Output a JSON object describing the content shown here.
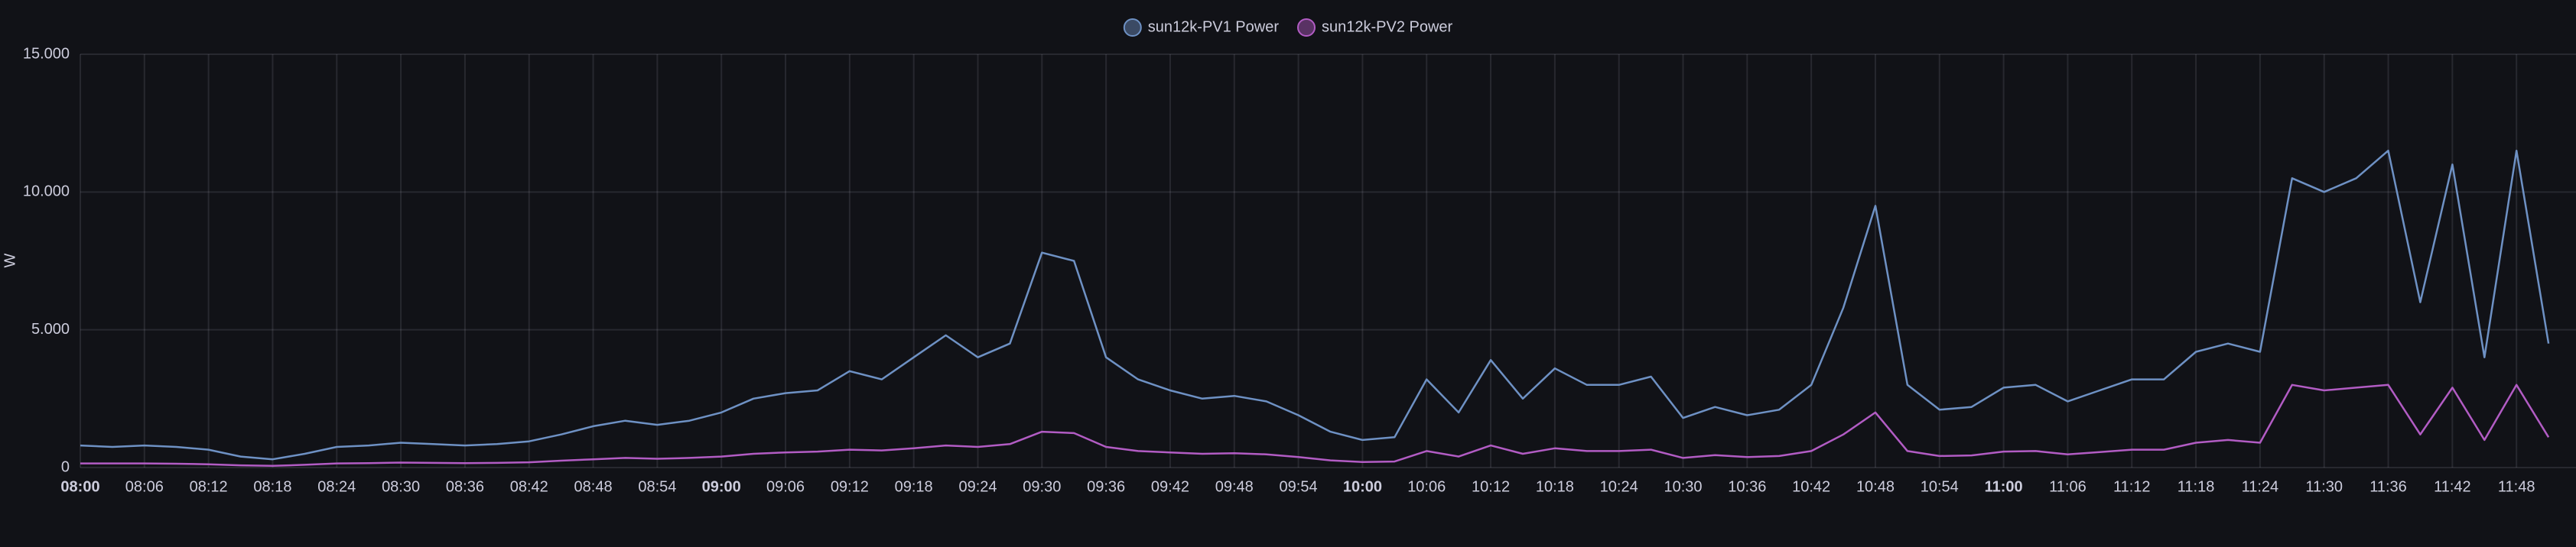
{
  "chart_data": {
    "type": "line",
    "y_label": "W",
    "x": [
      "08:00",
      "08:03",
      "08:06",
      "08:09",
      "08:12",
      "08:15",
      "08:18",
      "08:21",
      "08:24",
      "08:27",
      "08:30",
      "08:33",
      "08:36",
      "08:39",
      "08:42",
      "08:45",
      "08:48",
      "08:51",
      "08:54",
      "08:57",
      "09:00",
      "09:03",
      "09:06",
      "09:09",
      "09:12",
      "09:15",
      "09:18",
      "09:21",
      "09:24",
      "09:27",
      "09:30",
      "09:33",
      "09:36",
      "09:39",
      "09:42",
      "09:45",
      "09:48",
      "09:51",
      "09:54",
      "09:57",
      "10:00",
      "10:03",
      "10:06",
      "10:09",
      "10:12",
      "10:15",
      "10:18",
      "10:21",
      "10:24",
      "10:27",
      "10:30",
      "10:33",
      "10:36",
      "10:39",
      "10:42",
      "10:45",
      "10:48",
      "10:51",
      "10:54",
      "10:57",
      "11:00",
      "11:03",
      "11:06",
      "11:09",
      "11:12",
      "11:15",
      "11:18",
      "11:21",
      "11:24",
      "11:27",
      "11:30",
      "11:33",
      "11:36",
      "11:39",
      "11:42",
      "11:45",
      "11:48",
      "11:51"
    ],
    "series": [
      {
        "name": "sun12k-PV1 Power",
        "color": "#6e91c4",
        "values": [
          800,
          750,
          800,
          750,
          650,
          400,
          300,
          500,
          750,
          800,
          900,
          850,
          800,
          850,
          950,
          1200,
          1500,
          1700,
          1550,
          1700,
          2000,
          2500,
          2700,
          2800,
          3500,
          3200,
          4000,
          4800,
          4000,
          4500,
          7800,
          7500,
          4000,
          3200,
          2800,
          2500,
          2600,
          2400,
          1900,
          1300,
          1000,
          1100,
          3200,
          2000,
          3900,
          2500,
          3600,
          3000,
          3000,
          3300,
          1800,
          2200,
          1900,
          2100,
          3000,
          5800,
          9500,
          3000,
          2100,
          2200,
          2900,
          3000,
          2400,
          2800,
          3200,
          3200,
          4200,
          4500,
          4200,
          10500,
          10000,
          10500,
          11500,
          6000,
          11000,
          4000,
          11500,
          4500
        ]
      },
      {
        "name": "sun12k-PV2 Power",
        "color": "#b25cc4",
        "values": [
          150,
          150,
          150,
          140,
          120,
          80,
          60,
          100,
          150,
          160,
          180,
          170,
          160,
          170,
          190,
          250,
          300,
          350,
          320,
          350,
          400,
          500,
          550,
          580,
          650,
          620,
          700,
          800,
          750,
          850,
          1300,
          1250,
          750,
          600,
          550,
          500,
          520,
          480,
          380,
          260,
          200,
          220,
          600,
          400,
          800,
          500,
          700,
          600,
          600,
          650,
          350,
          450,
          380,
          420,
          600,
          1200,
          2000,
          600,
          420,
          440,
          580,
          600,
          480,
          560,
          650,
          650,
          900,
          1000,
          900,
          3000,
          2800,
          2900,
          3000,
          1200,
          2900,
          1000,
          3000,
          1100
        ]
      }
    ],
    "xlim": [
      "08:00",
      "11:54"
    ],
    "xticks": [
      "08:00",
      "08:06",
      "08:12",
      "08:18",
      "08:24",
      "08:30",
      "08:36",
      "08:42",
      "08:48",
      "08:54",
      "09:00",
      "09:06",
      "09:12",
      "09:18",
      "09:24",
      "09:30",
      "09:36",
      "09:42",
      "09:48",
      "09:54",
      "10:00",
      "10:06",
      "10:12",
      "10:18",
      "10:24",
      "10:30",
      "10:36",
      "10:42",
      "10:48",
      "10:54",
      "11:00",
      "11:06",
      "11:12",
      "11:18",
      "11:24",
      "11:30",
      "11:36",
      "11:42",
      "11:48"
    ],
    "ylim": [
      0,
      15000
    ],
    "yticks": [
      0,
      {
        "value": 5000,
        "label": "5.000"
      },
      {
        "value": 10000,
        "label": "10.000"
      },
      {
        "value": 15000,
        "label": "15.000"
      }
    ],
    "grid": true,
    "legend": "top"
  }
}
